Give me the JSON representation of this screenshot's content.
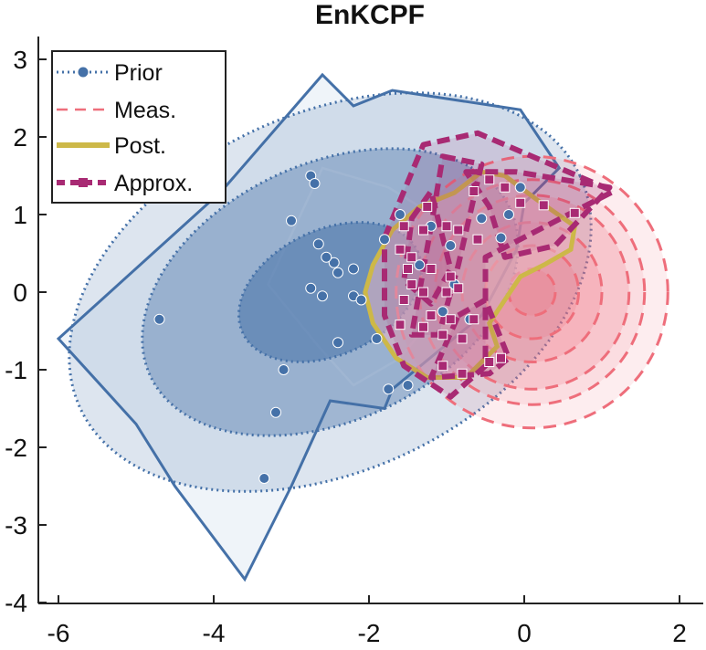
{
  "chart_data": {
    "type": "scatter",
    "title": "EnKCPF",
    "xlabel": "",
    "ylabel": "",
    "xlim": [
      -6.2,
      2.3
    ],
    "ylim": [
      -4,
      3.3
    ],
    "xticks": [
      -6,
      -4,
      -2,
      0,
      2
    ],
    "yticks": [
      -4,
      -3,
      -2,
      -1,
      0,
      1,
      2,
      3
    ],
    "xtick_labels": [
      "-6",
      "-4",
      "-2",
      "0",
      "2"
    ],
    "ytick_labels": [
      "-4",
      "-3",
      "-2",
      "-1",
      "0",
      "1",
      "2",
      "3"
    ],
    "legend": {
      "position": "top-left",
      "entries": [
        {
          "label": "Prior",
          "style": "dotted-line-with-circle",
          "color": "#4571a8"
        },
        {
          "label": "Meas.",
          "style": "dashed",
          "color": "#ee6e7b"
        },
        {
          "label": "Post.",
          "style": "solid-thick",
          "color": "#cdb848"
        },
        {
          "label": "Approx.",
          "style": "dashed-thick-with-square",
          "color": "#a82a73"
        }
      ]
    },
    "colors": {
      "prior": "#4571a8",
      "prior_fill": "#a8c0db",
      "meas": "#ee6e7b",
      "post": "#cdb848",
      "approx": "#a82a73"
    },
    "prior_ellipse": {
      "center": [
        -2.5,
        0
      ],
      "semi_axes": [
        3.55,
        2.3
      ],
      "angle_deg": 25,
      "levels": [
        0.35,
        0.72,
        1.0
      ]
    },
    "meas_rings": {
      "center": [
        0.1,
        0
      ],
      "radii": [
        0.3,
        0.6,
        0.9,
        1.25,
        1.45,
        1.75
      ]
    },
    "post_region": [
      [
        -1.95,
        0.35
      ],
      [
        -1.7,
        0.8
      ],
      [
        -1.35,
        1.1
      ],
      [
        -0.9,
        1.28
      ],
      [
        -0.55,
        1.55
      ],
      [
        -0.25,
        1.5
      ],
      [
        0.15,
        1.2
      ],
      [
        0.65,
        0.85
      ],
      [
        0.6,
        0.55
      ],
      [
        0.25,
        0.35
      ],
      [
        -0.05,
        0.2
      ],
      [
        -0.25,
        -0.1
      ],
      [
        -0.45,
        -0.4
      ],
      [
        -0.35,
        -0.7
      ],
      [
        -0.75,
        -1.1
      ],
      [
        -1.25,
        -1.1
      ],
      [
        -1.65,
        -0.85
      ],
      [
        -1.95,
        -0.4
      ],
      [
        -2.05,
        0.0
      ]
    ],
    "approx_polygons": [
      [
        [
          -1.8,
          0.7
        ],
        [
          -1.3,
          1.9
        ],
        [
          -0.6,
          2.05
        ],
        [
          1.15,
          1.3
        ],
        [
          -0.5,
          0.45
        ],
        [
          -0.5,
          -0.95
        ],
        [
          -0.95,
          -1.35
        ],
        [
          -1.55,
          -0.95
        ],
        [
          -1.8,
          -0.3
        ]
      ],
      [
        [
          -1.05,
          1.75
        ],
        [
          -0.55,
          1.65
        ],
        [
          -0.85,
          0.35
        ],
        [
          -1.1,
          -0.55
        ],
        [
          -1.45,
          -0.55
        ],
        [
          -1.2,
          0.85
        ]
      ],
      [
        [
          -0.75,
          1.55
        ],
        [
          -0.1,
          1.55
        ],
        [
          1.1,
          1.35
        ],
        [
          0.4,
          0.6
        ],
        [
          -0.25,
          0.45
        ],
        [
          -0.45,
          1.1
        ]
      ],
      [
        [
          -1.45,
          0.95
        ],
        [
          -1.2,
          1.3
        ],
        [
          -0.95,
          0.3
        ],
        [
          -1.2,
          -0.15
        ],
        [
          -1.55,
          0.15
        ]
      ],
      [
        [
          -0.85,
          -0.3
        ],
        [
          -0.5,
          -0.1
        ],
        [
          -0.2,
          -0.85
        ],
        [
          -0.45,
          -1.05
        ],
        [
          -1.2,
          -1.1
        ]
      ]
    ],
    "prior_ensemble": [
      {
        "x": -4.7,
        "y": -0.35
      },
      {
        "x": -3.35,
        "y": -2.4
      },
      {
        "x": -3.1,
        "y": -1.0
      },
      {
        "x": -3.2,
        "y": -1.55
      },
      {
        "x": -3.0,
        "y": 0.92
      },
      {
        "x": -2.75,
        "y": 1.5
      },
      {
        "x": -2.7,
        "y": 1.4
      },
      {
        "x": -2.65,
        "y": 0.62
      },
      {
        "x": -2.75,
        "y": 0.05
      },
      {
        "x": -2.6,
        "y": -0.05
      },
      {
        "x": -2.45,
        "y": 0.38
      },
      {
        "x": -2.4,
        "y": 0.25
      },
      {
        "x": -2.4,
        "y": -0.65
      },
      {
        "x": -2.2,
        "y": -0.05
      },
      {
        "x": -2.1,
        "y": -0.1
      },
      {
        "x": -1.8,
        "y": 0.68
      },
      {
        "x": -1.75,
        "y": -1.25
      },
      {
        "x": -1.5,
        "y": -1.2
      },
      {
        "x": -1.2,
        "y": 0.85
      },
      {
        "x": -0.95,
        "y": 0.6
      },
      {
        "x": -0.9,
        "y": 0.1
      },
      {
        "x": -0.2,
        "y": 1.0
      },
      {
        "x": -2.55,
        "y": 0.45
      },
      {
        "x": -2.2,
        "y": 0.3
      },
      {
        "x": -1.9,
        "y": -0.6
      },
      {
        "x": -1.6,
        "y": 1.0
      },
      {
        "x": -1.35,
        "y": 0.35
      },
      {
        "x": -1.05,
        "y": -0.25
      },
      {
        "x": -0.7,
        "y": -0.35
      },
      {
        "x": -0.55,
        "y": 0.95
      },
      {
        "x": -0.3,
        "y": 0.7
      },
      {
        "x": -0.05,
        "y": 1.35
      }
    ],
    "approx_ensemble": [
      {
        "x": -1.25,
        "y": 1.1
      },
      {
        "x": -0.65,
        "y": 1.3
      },
      {
        "x": -0.45,
        "y": 1.45
      },
      {
        "x": -0.25,
        "y": 1.35
      },
      {
        "x": -0.05,
        "y": 1.15
      },
      {
        "x": 0.25,
        "y": 1.12
      },
      {
        "x": 0.65,
        "y": 1.02
      },
      {
        "x": -1.55,
        "y": 0.85
      },
      {
        "x": -1.3,
        "y": 0.8
      },
      {
        "x": -1.0,
        "y": 0.85
      },
      {
        "x": -0.85,
        "y": 0.8
      },
      {
        "x": -0.6,
        "y": 0.68
      },
      {
        "x": -1.6,
        "y": 0.55
      },
      {
        "x": -1.45,
        "y": 0.45
      },
      {
        "x": -1.2,
        "y": 0.3
      },
      {
        "x": -0.95,
        "y": 0.2
      },
      {
        "x": -1.45,
        "y": 0.1
      },
      {
        "x": -1.3,
        "y": 0.0
      },
      {
        "x": -1.0,
        "y": 0.0
      },
      {
        "x": -0.85,
        "y": 0.05
      },
      {
        "x": -1.55,
        "y": -0.1
      },
      {
        "x": -1.2,
        "y": -0.3
      },
      {
        "x": -0.95,
        "y": -0.35
      },
      {
        "x": -0.65,
        "y": -0.35
      },
      {
        "x": -1.6,
        "y": -0.42
      },
      {
        "x": -1.3,
        "y": -0.45
      },
      {
        "x": -1.05,
        "y": -0.55
      },
      {
        "x": -0.8,
        "y": -0.6
      },
      {
        "x": -0.45,
        "y": -0.9
      },
      {
        "x": -0.3,
        "y": -0.85
      },
      {
        "x": -1.05,
        "y": -0.95
      },
      {
        "x": -0.8,
        "y": -1.05
      },
      {
        "x": -1.5,
        "y": 0.3
      }
    ]
  }
}
